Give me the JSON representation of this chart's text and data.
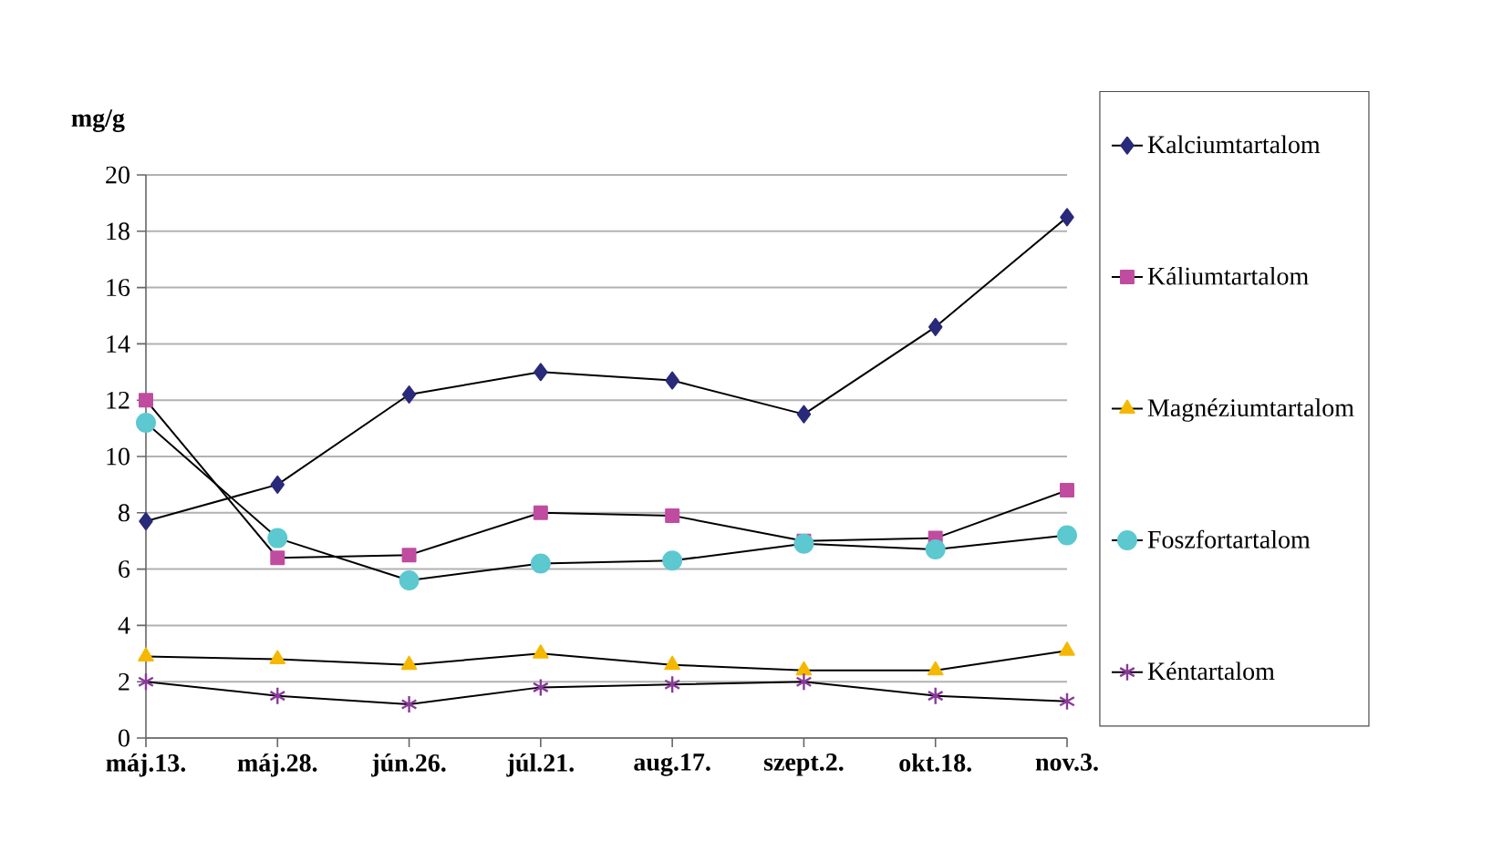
{
  "chart_data": {
    "type": "line",
    "ylabel": "mg/g",
    "categories": [
      "máj.13.",
      "máj.28.",
      "jún.26.",
      "júl.21.",
      "aug.17.",
      "szept.2.",
      "okt.18.",
      "nov.3."
    ],
    "series": [
      {
        "name": "Kalciumtartalom",
        "color": "#2a2a7a",
        "marker": "diamond",
        "values": [
          7.7,
          9.0,
          12.2,
          13.0,
          12.7,
          11.5,
          14.6,
          18.5
        ]
      },
      {
        "name": "Káliumtartalom",
        "color": "#c04ca0",
        "marker": "square",
        "values": [
          12.0,
          6.4,
          6.5,
          8.0,
          7.9,
          7.0,
          7.1,
          8.8
        ]
      },
      {
        "name": "Magnéziumtartalom",
        "color": "#f5b800",
        "marker": "triangle",
        "values": [
          2.9,
          2.8,
          2.6,
          3.0,
          2.6,
          2.4,
          2.4,
          3.1
        ]
      },
      {
        "name": "Foszfortartalom",
        "color": "#5cc8d0",
        "marker": "circle",
        "values": [
          11.2,
          7.1,
          5.6,
          6.2,
          6.3,
          6.9,
          6.7,
          7.2
        ]
      },
      {
        "name": "Kéntartalom",
        "color": "#8a3a9a",
        "marker": "cross",
        "values": [
          2.0,
          1.5,
          1.2,
          1.8,
          1.9,
          2.0,
          1.5,
          1.3
        ]
      }
    ],
    "ylim": [
      0,
      20
    ],
    "yticks": [
      0,
      2,
      4,
      6,
      8,
      10,
      12,
      14,
      16,
      18,
      20
    ],
    "grid": "y",
    "legend": "right",
    "line_style": "solid"
  }
}
